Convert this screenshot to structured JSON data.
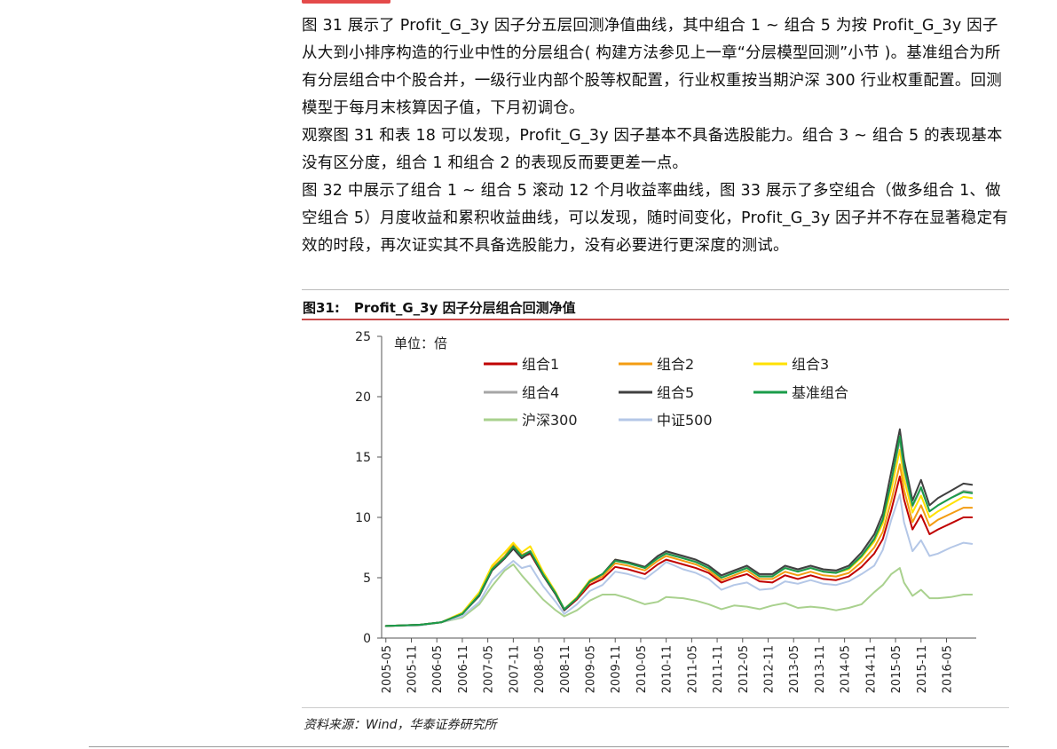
{
  "paragraphs": [
    "图 31 展示了 Profit_G_3y 因子分五层回测净值曲线，其中组合 1 ~ 组合 5 为按 Profit_G_3y 因子从大到小排序构造的行业中性的分层组合( 构建方法参见上一章“分层模型回测”小节 )。基准组合为所有分层组合中个股合并，一级行业内部个股等权配置，行业权重按当期沪深 300 行业权重配置。回测模型于每月末核算因子值，下月初调仓。",
    "观察图 31 和表 18 可以发现，Profit_G_3y 因子基本不具备选股能力。组合 3 ~ 组合 5 的表现基本没有区分度，组合 1 和组合 2 的表现反而要更差一点。",
    "图 32 中展示了组合 1 ~ 组合 5 滚动 12 个月收益率曲线，图 33 展示了多空组合（做多组合 1、做空组合 5）月度收益和累积收益曲线，可以发现，随时间变化，Profit_G_3y 因子并不存在显著稳定有效的时段，再次证实其不具备选股能力，没有必要进行更深度的测试。"
  ],
  "figure": {
    "number": "图31:",
    "title": "Profit_G_3y 因子分层组合回测净值",
    "source": "资料来源：Wind，华泰证券研究所"
  },
  "chart_data": {
    "type": "line",
    "unit_label": "单位：倍",
    "ylim": [
      0,
      25
    ],
    "yticks": [
      0,
      5,
      10,
      15,
      20,
      25
    ],
    "xticks": [
      "2005-05",
      "2005-11",
      "2006-05",
      "2006-11",
      "2007-05",
      "2007-11",
      "2008-05",
      "2008-11",
      "2009-05",
      "2009-11",
      "2010-05",
      "2010-11",
      "2011-05",
      "2011-11",
      "2012-05",
      "2012-11",
      "2013-05",
      "2013-11",
      "2014-05",
      "2014-11",
      "2015-05",
      "2015-11",
      "2016-05"
    ],
    "x_range": [
      "2005-04",
      "2016-12"
    ],
    "legend_placement": "top-center",
    "x": [
      "2005-05",
      "2006-01",
      "2006-06",
      "2006-11",
      "2007-03",
      "2007-06",
      "2007-09",
      "2007-11",
      "2008-01",
      "2008-03",
      "2008-06",
      "2008-09",
      "2008-11",
      "2009-02",
      "2009-05",
      "2009-08",
      "2009-11",
      "2010-02",
      "2010-06",
      "2010-09",
      "2010-11",
      "2011-03",
      "2011-06",
      "2011-09",
      "2011-12",
      "2012-03",
      "2012-06",
      "2012-09",
      "2012-12",
      "2013-03",
      "2013-06",
      "2013-09",
      "2013-12",
      "2014-03",
      "2014-06",
      "2014-09",
      "2014-12",
      "2015-02",
      "2015-04",
      "2015-06",
      "2015-07",
      "2015-09",
      "2015-11",
      "2016-01",
      "2016-03",
      "2016-06",
      "2016-09",
      "2016-11"
    ],
    "series": [
      {
        "name": "组合1",
        "color": "#c00000",
        "values": [
          1.0,
          1.1,
          1.3,
          2.0,
          3.6,
          5.6,
          6.6,
          7.6,
          6.7,
          7.0,
          5.2,
          3.6,
          2.3,
          3.2,
          4.4,
          4.9,
          5.9,
          5.7,
          5.3,
          6.1,
          6.5,
          6.1,
          5.8,
          5.4,
          4.6,
          5.0,
          5.3,
          4.7,
          4.6,
          5.2,
          4.9,
          5.2,
          4.9,
          4.8,
          5.1,
          5.9,
          7.0,
          8.2,
          10.6,
          13.4,
          11.5,
          9.0,
          10.2,
          8.6,
          9.0,
          9.5,
          10.0,
          10.0
        ]
      },
      {
        "name": "组合2",
        "color": "#f39c12",
        "values": [
          1.0,
          1.1,
          1.3,
          2.0,
          3.7,
          5.8,
          6.8,
          7.8,
          6.9,
          7.2,
          5.3,
          3.7,
          2.4,
          3.3,
          4.6,
          5.1,
          6.2,
          6.0,
          5.6,
          6.4,
          6.8,
          6.4,
          6.1,
          5.6,
          4.8,
          5.2,
          5.6,
          4.9,
          4.9,
          5.5,
          5.2,
          5.5,
          5.2,
          5.1,
          5.4,
          6.3,
          7.5,
          8.8,
          11.4,
          14.4,
          12.3,
          9.6,
          11.0,
          9.3,
          9.8,
          10.3,
          10.8,
          10.8
        ]
      },
      {
        "name": "组合3",
        "color": "#ffe100",
        "values": [
          1.0,
          1.1,
          1.3,
          2.1,
          3.8,
          6.0,
          7.1,
          7.9,
          7.1,
          7.6,
          5.5,
          3.8,
          2.4,
          3.4,
          4.8,
          5.3,
          6.5,
          6.3,
          5.9,
          6.7,
          7.1,
          6.7,
          6.4,
          5.9,
          5.1,
          5.5,
          5.9,
          5.2,
          5.2,
          5.8,
          5.5,
          5.8,
          5.5,
          5.4,
          5.7,
          6.7,
          8.0,
          9.5,
          12.3,
          15.6,
          13.2,
          10.4,
          11.8,
          10.0,
          10.5,
          11.1,
          11.7,
          11.6
        ]
      },
      {
        "name": "组合4",
        "color": "#a6a6a6",
        "values": [
          1.0,
          1.1,
          1.3,
          2.0,
          3.6,
          5.7,
          6.7,
          7.5,
          6.7,
          7.2,
          5.3,
          3.7,
          2.4,
          3.3,
          4.7,
          5.3,
          6.5,
          6.3,
          5.9,
          6.7,
          7.1,
          6.7,
          6.4,
          5.9,
          5.1,
          5.5,
          5.9,
          5.2,
          5.2,
          5.9,
          5.6,
          5.9,
          5.6,
          5.5,
          5.9,
          6.9,
          8.3,
          9.9,
          12.9,
          16.4,
          13.9,
          10.9,
          12.4,
          10.5,
          11.0,
          11.6,
          12.2,
          12.1
        ]
      },
      {
        "name": "组合5",
        "color": "#404040",
        "values": [
          1.0,
          1.1,
          1.3,
          2.0,
          3.5,
          5.6,
          6.6,
          7.4,
          6.6,
          7.1,
          5.2,
          3.6,
          2.3,
          3.3,
          4.7,
          5.3,
          6.5,
          6.3,
          5.9,
          6.8,
          7.2,
          6.8,
          6.5,
          6.0,
          5.2,
          5.6,
          6.0,
          5.3,
          5.3,
          6.0,
          5.7,
          6.0,
          5.7,
          5.6,
          6.0,
          7.1,
          8.6,
          10.3,
          13.8,
          17.3,
          14.8,
          11.4,
          13.1,
          11.0,
          11.6,
          12.2,
          12.8,
          12.7
        ]
      },
      {
        "name": "基准组合",
        "color": "#1a9c4a",
        "values": [
          1.0,
          1.1,
          1.3,
          2.0,
          3.6,
          5.7,
          6.7,
          7.6,
          6.8,
          7.2,
          5.3,
          3.7,
          2.4,
          3.3,
          4.7,
          5.3,
          6.4,
          6.2,
          5.8,
          6.6,
          7.0,
          6.6,
          6.3,
          5.8,
          5.0,
          5.4,
          5.8,
          5.1,
          5.1,
          5.8,
          5.5,
          5.8,
          5.5,
          5.4,
          5.8,
          6.8,
          8.2,
          9.8,
          13.0,
          16.7,
          14.2,
          11.0,
          12.5,
          10.5,
          11.0,
          11.6,
          12.1,
          12.0
        ]
      },
      {
        "name": "沪深300",
        "color": "#a9d18e",
        "values": [
          1.0,
          1.05,
          1.3,
          1.7,
          2.8,
          4.3,
          5.6,
          6.1,
          5.2,
          4.4,
          3.2,
          2.3,
          1.8,
          2.3,
          3.1,
          3.6,
          3.6,
          3.3,
          2.8,
          3.0,
          3.4,
          3.3,
          3.1,
          2.8,
          2.4,
          2.7,
          2.6,
          2.4,
          2.7,
          2.9,
          2.5,
          2.6,
          2.5,
          2.3,
          2.5,
          2.8,
          3.8,
          4.4,
          5.3,
          5.8,
          4.6,
          3.5,
          4.0,
          3.3,
          3.3,
          3.4,
          3.6,
          3.6
        ]
      },
      {
        "name": "中证500",
        "color": "#b4c7e7",
        "values": [
          1.0,
          1.05,
          1.3,
          1.8,
          3.0,
          4.8,
          5.8,
          6.4,
          5.8,
          6.0,
          4.3,
          3.0,
          2.0,
          2.8,
          3.9,
          4.4,
          5.5,
          5.3,
          4.9,
          5.7,
          6.3,
          5.7,
          5.4,
          4.9,
          4.0,
          4.4,
          4.6,
          4.0,
          4.1,
          4.7,
          4.5,
          4.8,
          4.5,
          4.4,
          4.7,
          5.3,
          6.0,
          7.3,
          9.8,
          11.9,
          9.6,
          7.2,
          8.1,
          6.8,
          7.0,
          7.5,
          7.9,
          7.8
        ]
      }
    ]
  }
}
